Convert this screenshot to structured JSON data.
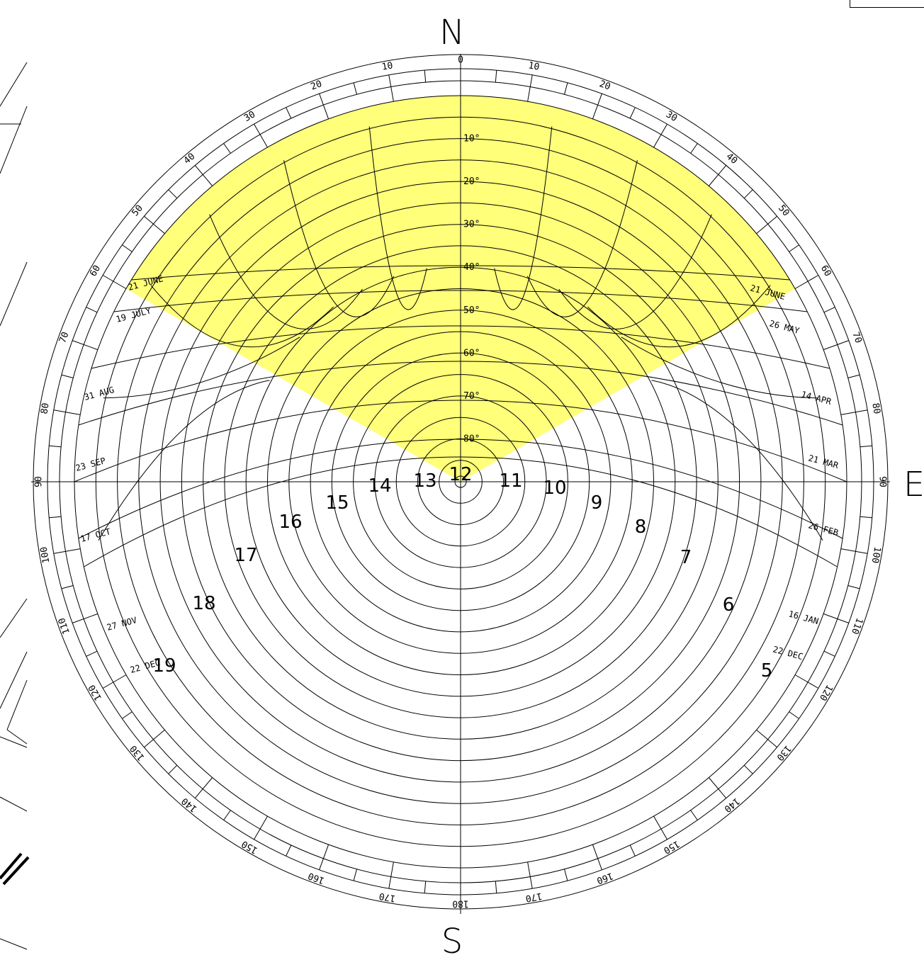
{
  "compass": {
    "north": "N",
    "south": "S",
    "east": "E"
  },
  "colors": {
    "highlight": "#ffff7a",
    "line": "#000000",
    "background": "#ffffff"
  },
  "azimuth_labels": [
    {
      "deg": 0,
      "text": "0"
    },
    {
      "deg": 10,
      "text": "10"
    },
    {
      "deg": 20,
      "text": "20"
    },
    {
      "deg": 30,
      "text": "30"
    },
    {
      "deg": 40,
      "text": "40"
    },
    {
      "deg": 50,
      "text": "50"
    },
    {
      "deg": 60,
      "text": "60"
    },
    {
      "deg": 70,
      "text": "70"
    },
    {
      "deg": 80,
      "text": "80"
    },
    {
      "deg": 90,
      "text": "90"
    },
    {
      "deg": 100,
      "text": "100"
    },
    {
      "deg": 110,
      "text": "110"
    },
    {
      "deg": 120,
      "text": "120"
    },
    {
      "deg": 130,
      "text": "130"
    },
    {
      "deg": 140,
      "text": "140"
    },
    {
      "deg": 150,
      "text": "150"
    },
    {
      "deg": 160,
      "text": "160"
    },
    {
      "deg": 170,
      "text": "170"
    },
    {
      "deg": 180,
      "text": "180"
    },
    {
      "deg": -10,
      "text": "10"
    },
    {
      "deg": -20,
      "text": "20"
    },
    {
      "deg": -30,
      "text": "30"
    },
    {
      "deg": -40,
      "text": "40"
    },
    {
      "deg": -50,
      "text": "50"
    },
    {
      "deg": -60,
      "text": "60"
    },
    {
      "deg": -70,
      "text": "70"
    },
    {
      "deg": -80,
      "text": "80"
    },
    {
      "deg": -90,
      "text": "90"
    },
    {
      "deg": -100,
      "text": "100"
    },
    {
      "deg": -110,
      "text": "110"
    },
    {
      "deg": -120,
      "text": "120"
    },
    {
      "deg": -130,
      "text": "130"
    },
    {
      "deg": -140,
      "text": "140"
    },
    {
      "deg": -150,
      "text": "150"
    },
    {
      "deg": -160,
      "text": "160"
    },
    {
      "deg": -170,
      "text": "170"
    }
  ],
  "altitude_labels": [
    "10°",
    "20°",
    "30°",
    "40°",
    "50°",
    "60°",
    "70°",
    "80°"
  ],
  "date_labels_left": [
    "21 JUNE",
    "19 JULY",
    "31 AUG",
    "23 SEP",
    "17 OCT",
    "27 NOV",
    "22 DEC"
  ],
  "date_labels_right": [
    "21 JUNE",
    "26 MAY",
    "14 APR",
    "21 MAR",
    "26 FEB",
    "16 JAN",
    "22 DEC"
  ],
  "hour_labels": [
    "5",
    "6",
    "7",
    "8",
    "9",
    "10",
    "11",
    "12",
    "13",
    "14",
    "15",
    "16",
    "17",
    "18",
    "19"
  ],
  "shaded_region": {
    "azimuth_from_deg": -60,
    "azimuth_to_deg": 60,
    "description_free": true
  }
}
